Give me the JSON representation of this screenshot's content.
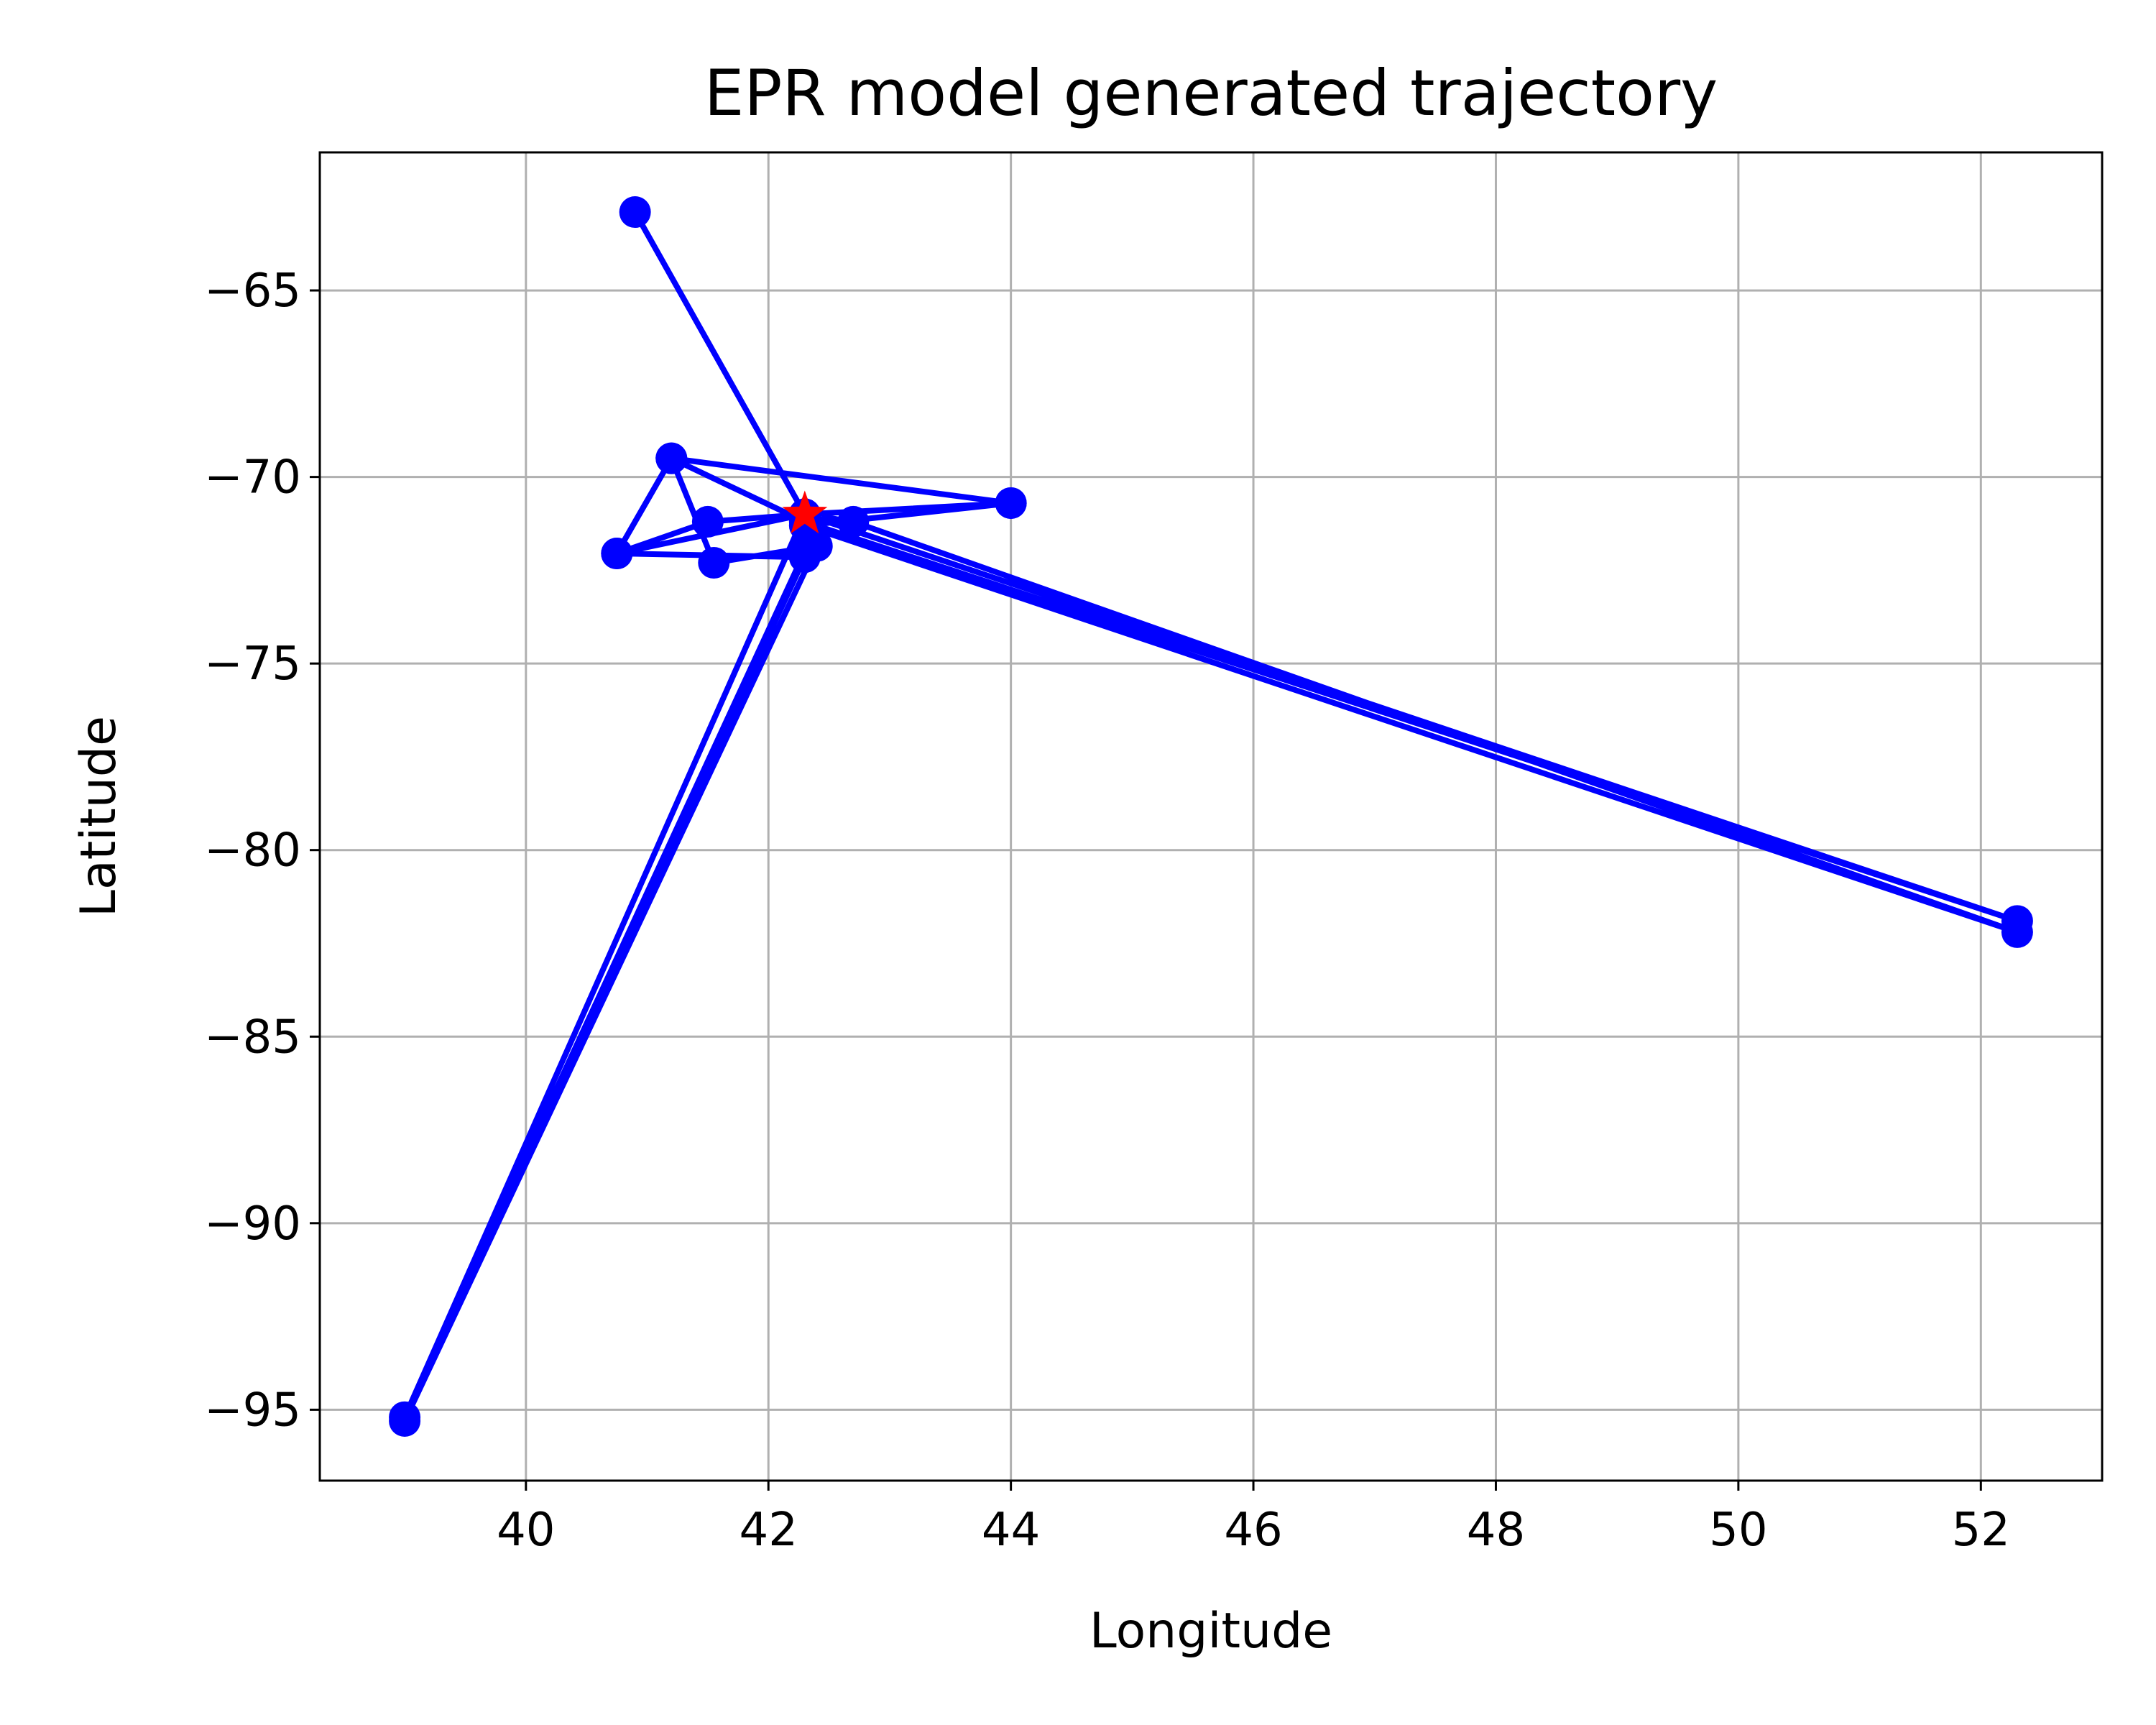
{
  "chart_data": {
    "type": "line",
    "title": "EPR model generated trajectory",
    "xlabel": "Longitude",
    "ylabel": "Latitude",
    "xlim": [
      38.3,
      53.0
    ],
    "ylim": [
      -96.9,
      -61.3
    ],
    "xticks": [
      40,
      42,
      44,
      46,
      48,
      50,
      52
    ],
    "yticks": [
      -95,
      -90,
      -85,
      -80,
      -75,
      -70,
      -65
    ],
    "xtick_labels": [
      "40",
      "42",
      "44",
      "46",
      "48",
      "50",
      "52"
    ],
    "ytick_labels": [
      "−95",
      "−90",
      "−85",
      "−80",
      "−75",
      "−70",
      "−65"
    ],
    "grid": true,
    "line_color": "#0000ff",
    "marker_color": "#0000ff",
    "start_marker_color": "#ff0000",
    "start_point": {
      "x": 42.3,
      "y": -71.0
    },
    "series": [
      {
        "points": [
          [
            42.3,
            -71.0
          ],
          [
            40.9,
            -62.9
          ],
          [
            42.3,
            -71.0
          ],
          [
            44.0,
            -70.7
          ],
          [
            41.2,
            -69.5
          ],
          [
            42.3,
            -71.2
          ],
          [
            52.3,
            -81.9
          ],
          [
            42.3,
            -71.0
          ],
          [
            41.5,
            -71.2
          ],
          [
            40.75,
            -72.05
          ],
          [
            42.3,
            -72.15
          ],
          [
            39.0,
            -95.3
          ],
          [
            42.4,
            -71.85
          ],
          [
            41.55,
            -72.3
          ],
          [
            41.2,
            -69.5
          ],
          [
            40.75,
            -72.05
          ],
          [
            42.3,
            -71.0
          ],
          [
            42.7,
            -71.2
          ],
          [
            52.3,
            -82.2
          ],
          [
            42.3,
            -71.3
          ],
          [
            44.0,
            -70.7
          ],
          [
            42.3,
            -71.0
          ],
          [
            39.0,
            -95.2
          ],
          [
            42.3,
            -72.0
          ],
          [
            42.3,
            -71.0
          ]
        ]
      }
    ]
  }
}
